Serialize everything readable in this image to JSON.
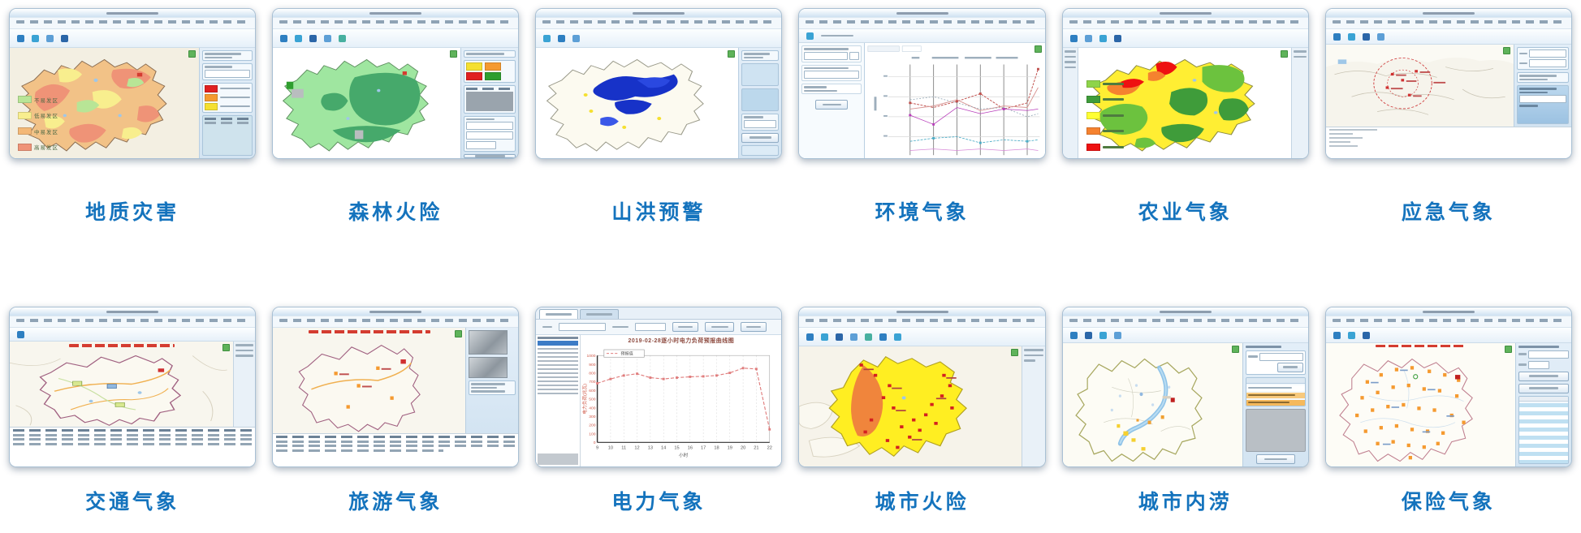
{
  "page": {
    "background": "#ffffff",
    "caption_color": "#1473bd"
  },
  "cards": [
    {
      "id": "geology",
      "caption": "地质灾害"
    },
    {
      "id": "forest-fire",
      "caption": "森林火险"
    },
    {
      "id": "flash-flood",
      "caption": "山洪预警"
    },
    {
      "id": "env-weather",
      "caption": "环境气象"
    },
    {
      "id": "agri-weather",
      "caption": "农业气象"
    },
    {
      "id": "emergency-weather",
      "caption": "应急气象"
    },
    {
      "id": "traffic-weather",
      "caption": "交通气象"
    },
    {
      "id": "tourism-weather",
      "caption": "旅游气象"
    },
    {
      "id": "power-weather",
      "caption": "电力气象"
    },
    {
      "id": "urban-fire",
      "caption": "城市火险"
    },
    {
      "id": "urban-flood",
      "caption": "城市内涝"
    },
    {
      "id": "insurance-weather",
      "caption": "保险气象"
    }
  ],
  "geology_legend": [
    {
      "label": "不易发区",
      "color": "#b8e596"
    },
    {
      "label": "低易发区",
      "color": "#f8ee8e"
    },
    {
      "label": "中易发区",
      "color": "#f3b877"
    },
    {
      "label": "高易发区",
      "color": "#ef9377"
    }
  ],
  "agri_legend": [
    {
      "label": "",
      "color": "#8ed44a"
    },
    {
      "label": "",
      "color": "#3f9c3a"
    },
    {
      "label": "",
      "color": "#ffff33"
    },
    {
      "label": "",
      "color": "#f5822f"
    },
    {
      "label": "",
      "color": "#ee1111"
    }
  ],
  "chart_data": {
    "type": "line",
    "title": "2019-02-28逐小时电力负荷预报曲线图",
    "legend": [
      "预报值"
    ],
    "legend_position": "top-left",
    "xlabel": "小时",
    "ylabel": "电力负荷(兆瓦)",
    "x": [
      9,
      10,
      11,
      12,
      13,
      14,
      15,
      16,
      17,
      18,
      19,
      20,
      21,
      22
    ],
    "values": [
      680,
      730,
      770,
      790,
      745,
      730,
      745,
      755,
      760,
      770,
      800,
      855,
      845,
      150
    ],
    "ylim": [
      0,
      1000
    ],
    "ytick_step": 100,
    "line_color": "#e07d7d",
    "grid": true
  }
}
